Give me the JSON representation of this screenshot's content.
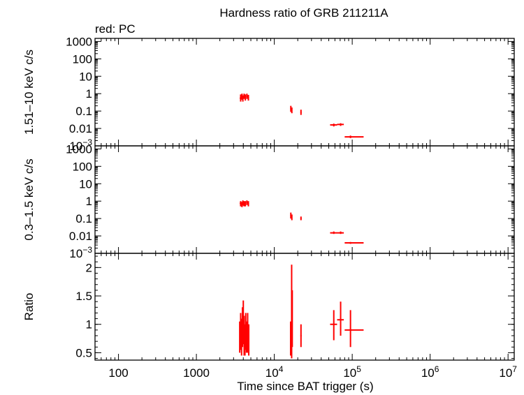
{
  "chart_data": {
    "type": "scatter",
    "title": "Hardness ratio of GRB 211211A",
    "subtitle": "red: PC",
    "xlabel": "Time since BAT trigger (s)",
    "x_scale": "log",
    "xlim": [
      50,
      12000000
    ],
    "x_ticks": [
      {
        "v": 100,
        "base": "100",
        "exp": ""
      },
      {
        "v": 1000,
        "base": "1000",
        "exp": ""
      },
      {
        "v": 10000,
        "base": "10",
        "exp": "4"
      },
      {
        "v": 100000,
        "base": "10",
        "exp": "5"
      },
      {
        "v": 1000000,
        "base": "10",
        "exp": "6"
      },
      {
        "v": 10000000,
        "base": "10",
        "exp": "7"
      }
    ],
    "color": "#ff0000",
    "panels": [
      {
        "ylabel": "1.51–10 keV c/s",
        "y_scale": "log",
        "ylim": [
          0.001,
          1500
        ],
        "y_ticks": [
          {
            "v": 1000,
            "label": "1000",
            "exp": ""
          },
          {
            "v": 100,
            "label": "100",
            "exp": ""
          },
          {
            "v": 10,
            "label": "10",
            "exp": ""
          },
          {
            "v": 1,
            "label": "1",
            "exp": ""
          },
          {
            "v": 0.1,
            "label": "0.1",
            "exp": ""
          },
          {
            "v": 0.01,
            "label": "0.01",
            "exp": ""
          },
          {
            "v": 0.001,
            "label": "10",
            "exp": "−3"
          }
        ],
        "points": [
          {
            "x": 3700,
            "xerr": [
              3600,
              3800
            ],
            "y": 0.55,
            "yerr": [
              0.35,
              0.9
            ]
          },
          {
            "x": 3850,
            "xerr": [
              3780,
              3920
            ],
            "y": 0.7,
            "yerr": [
              0.45,
              1.0
            ]
          },
          {
            "x": 3950,
            "xerr": [
              3900,
              4000
            ],
            "y": 0.5,
            "yerr": [
              0.35,
              0.8
            ]
          },
          {
            "x": 4100,
            "xerr": [
              4020,
              4180
            ],
            "y": 0.75,
            "yerr": [
              0.5,
              1.0
            ]
          },
          {
            "x": 4250,
            "xerr": [
              4180,
              4320
            ],
            "y": 0.6,
            "yerr": [
              0.4,
              0.9
            ]
          },
          {
            "x": 4450,
            "xerr": [
              4350,
              4550
            ],
            "y": 0.7,
            "yerr": [
              0.5,
              1.0
            ]
          },
          {
            "x": 4650,
            "xerr": [
              4550,
              4750
            ],
            "y": 0.6,
            "yerr": [
              0.4,
              0.85
            ]
          },
          {
            "x": 16300,
            "xerr": [
              16000,
              16600
            ],
            "y": 0.14,
            "yerr": [
              0.09,
              0.2
            ]
          },
          {
            "x": 16800,
            "xerr": [
              16600,
              17000
            ],
            "y": 0.11,
            "yerr": [
              0.075,
              0.16
            ]
          },
          {
            "x": 22000,
            "xerr": [
              21600,
              22400
            ],
            "y": 0.085,
            "yerr": [
              0.06,
              0.12
            ]
          },
          {
            "x": 58000,
            "xerr": [
              52000,
              64000
            ],
            "y": 0.016,
            "yerr": [
              0.013,
              0.019
            ]
          },
          {
            "x": 71000,
            "xerr": [
              64000,
              78000
            ],
            "y": 0.017,
            "yerr": [
              0.014,
              0.02
            ]
          },
          {
            "x": 95000,
            "xerr": [
              80000,
              140000
            ],
            "y": 0.0033,
            "yerr": [
              0.0028,
              0.0039
            ]
          }
        ]
      },
      {
        "ylabel": "0.3–1.5 keV c/s",
        "y_scale": "log",
        "ylim": [
          0.001,
          1500
        ],
        "y_ticks": [
          {
            "v": 1000,
            "label": "1000",
            "exp": ""
          },
          {
            "v": 100,
            "label": "100",
            "exp": ""
          },
          {
            "v": 10,
            "label": "10",
            "exp": ""
          },
          {
            "v": 1,
            "label": "1",
            "exp": ""
          },
          {
            "v": 0.1,
            "label": "0.1",
            "exp": ""
          },
          {
            "v": 0.01,
            "label": "0.01",
            "exp": ""
          },
          {
            "v": 0.001,
            "label": "10",
            "exp": "−3"
          }
        ],
        "points": [
          {
            "x": 3700,
            "xerr": [
              3600,
              3800
            ],
            "y": 0.75,
            "yerr": [
              0.5,
              1.0
            ]
          },
          {
            "x": 3850,
            "xerr": [
              3780,
              3920
            ],
            "y": 0.65,
            "yerr": [
              0.45,
              0.9
            ]
          },
          {
            "x": 3950,
            "xerr": [
              3900,
              4000
            ],
            "y": 0.8,
            "yerr": [
              0.55,
              1.1
            ]
          },
          {
            "x": 4100,
            "xerr": [
              4020,
              4180
            ],
            "y": 0.7,
            "yerr": [
              0.5,
              1.0
            ]
          },
          {
            "x": 4250,
            "xerr": [
              4180,
              4320
            ],
            "y": 0.75,
            "yerr": [
              0.5,
              1.0
            ]
          },
          {
            "x": 4450,
            "xerr": [
              4350,
              4550
            ],
            "y": 0.85,
            "yerr": [
              0.6,
              1.1
            ]
          },
          {
            "x": 4650,
            "xerr": [
              4550,
              4750
            ],
            "y": 0.7,
            "yerr": [
              0.5,
              1.0
            ]
          },
          {
            "x": 16300,
            "xerr": [
              16000,
              16600
            ],
            "y": 0.15,
            "yerr": [
              0.1,
              0.22
            ]
          },
          {
            "x": 16800,
            "xerr": [
              16600,
              17000
            ],
            "y": 0.12,
            "yerr": [
              0.08,
              0.17
            ]
          },
          {
            "x": 22000,
            "xerr": [
              21600,
              22400
            ],
            "y": 0.1,
            "yerr": [
              0.08,
              0.13
            ]
          },
          {
            "x": 58000,
            "xerr": [
              52000,
              64000
            ],
            "y": 0.015,
            "yerr": [
              0.013,
              0.018
            ]
          },
          {
            "x": 71000,
            "xerr": [
              64000,
              78000
            ],
            "y": 0.015,
            "yerr": [
              0.013,
              0.018
            ]
          },
          {
            "x": 95000,
            "xerr": [
              80000,
              140000
            ],
            "y": 0.004,
            "yerr": [
              0.0035,
              0.0045
            ]
          }
        ]
      },
      {
        "ylabel": "Ratio",
        "y_scale": "linear",
        "ylim": [
          0.37,
          2.25
        ],
        "y_ticks": [
          {
            "v": 2,
            "label": "2",
            "exp": ""
          },
          {
            "v": 1.5,
            "label": "1.5",
            "exp": ""
          },
          {
            "v": 1,
            "label": "1",
            "exp": ""
          },
          {
            "v": 0.5,
            "label": "0.5",
            "exp": ""
          }
        ],
        "points": [
          {
            "x": 3600,
            "xerr": [
              3550,
              3650
            ],
            "y": 0.7,
            "yerr": [
              0.5,
              1.05
            ]
          },
          {
            "x": 3700,
            "xerr": [
              3650,
              3750
            ],
            "y": 0.85,
            "yerr": [
              0.55,
              1.2
            ]
          },
          {
            "x": 3800,
            "xerr": [
              3750,
              3850
            ],
            "y": 0.75,
            "yerr": [
              0.45,
              1.1
            ]
          },
          {
            "x": 3900,
            "xerr": [
              3850,
              3950
            ],
            "y": 0.9,
            "yerr": [
              0.6,
              1.3
            ]
          },
          {
            "x": 4000,
            "xerr": [
              3950,
              4050
            ],
            "y": 1.0,
            "yerr": [
              0.65,
              1.42
            ]
          },
          {
            "x": 4100,
            "xerr": [
              4050,
              4150
            ],
            "y": 0.8,
            "yerr": [
              0.45,
              1.15
            ]
          },
          {
            "x": 4200,
            "xerr": [
              4150,
              4250
            ],
            "y": 0.7,
            "yerr": [
              0.45,
              1.0
            ]
          },
          {
            "x": 4300,
            "xerr": [
              4250,
              4350
            ],
            "y": 0.85,
            "yerr": [
              0.55,
              1.2
            ]
          },
          {
            "x": 4400,
            "xerr": [
              4350,
              4450
            ],
            "y": 0.75,
            "yerr": [
              0.5,
              1.05
            ]
          },
          {
            "x": 4550,
            "xerr": [
              4450,
              4650
            ],
            "y": 0.8,
            "yerr": [
              0.5,
              1.2
            ]
          },
          {
            "x": 4700,
            "xerr": [
              4650,
              4750
            ],
            "y": 0.7,
            "yerr": [
              0.45,
              1.0
            ]
          },
          {
            "x": 16200,
            "xerr": [
              16000,
              16400
            ],
            "y": 0.75,
            "yerr": [
              0.45,
              1.05
            ]
          },
          {
            "x": 16700,
            "xerr": [
              16500,
              16900
            ],
            "y": 1.05,
            "yerr": [
              0.4,
              2.05
            ]
          },
          {
            "x": 17000,
            "xerr": [
              16900,
              17100
            ],
            "y": 0.9,
            "yerr": [
              0.6,
              1.6
            ]
          },
          {
            "x": 22000,
            "xerr": [
              21600,
              22400
            ],
            "y": 0.8,
            "yerr": [
              0.6,
              1.0
            ]
          },
          {
            "x": 58000,
            "xerr": [
              52000,
              64000
            ],
            "y": 1.0,
            "yerr": [
              0.72,
              1.25
            ]
          },
          {
            "x": 71000,
            "xerr": [
              64000,
              78000
            ],
            "y": 1.08,
            "yerr": [
              0.8,
              1.4
            ]
          },
          {
            "x": 95000,
            "xerr": [
              80000,
              140000
            ],
            "y": 0.9,
            "yerr": [
              0.6,
              1.25
            ]
          }
        ]
      }
    ]
  }
}
